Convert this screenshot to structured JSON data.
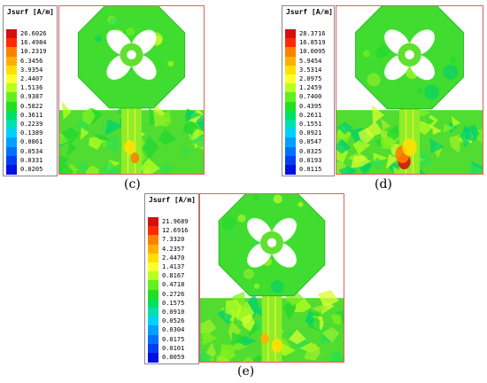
{
  "colorscale": [
    "#d41010",
    "#ff2a00",
    "#ff8000",
    "#ffb000",
    "#ffe000",
    "#ffff30",
    "#b8ff20",
    "#60f020",
    "#20e020",
    "#00e060",
    "#00e0b0",
    "#00d0ff",
    "#00a0ff",
    "#0070ff",
    "#0040f0",
    "#0010e0"
  ],
  "panels": [
    {
      "caption": "(c)",
      "legend_title": "Jsurf [A/m]",
      "legend_values": [
        "26.6026",
        "16.4984",
        "10.2319",
        "6.3456",
        "3.9354",
        "2.4407",
        "1.5136",
        "0.9387",
        "0.5822",
        "0.3611",
        "0.2239",
        "0.1389",
        "0.0861",
        "0.0534",
        "0.0331",
        "0.0205"
      ]
    },
    {
      "caption": "(d)",
      "legend_title": "Jsurf [A/m]",
      "legend_values": [
        "28.3716",
        "16.8519",
        "10.0095",
        "5.9454",
        "3.5314",
        "2.0975",
        "1.2459",
        "0.7400",
        "0.4395",
        "0.2611",
        "0.1551",
        "0.0921",
        "0.0547",
        "0.0325",
        "0.0193",
        "0.0115"
      ]
    },
    {
      "caption": "(e)",
      "legend_title": "Jsurf [A/m]",
      "legend_values": [
        "21.9689",
        "12.6916",
        "7.3320",
        "4.2357",
        "2.4470",
        "1.4137",
        "0.8167",
        "0.4718",
        "0.2726",
        "0.1575",
        "0.0910",
        "0.0526",
        "0.0304",
        "0.0175",
        "0.0101",
        "0.0059"
      ]
    }
  ]
}
